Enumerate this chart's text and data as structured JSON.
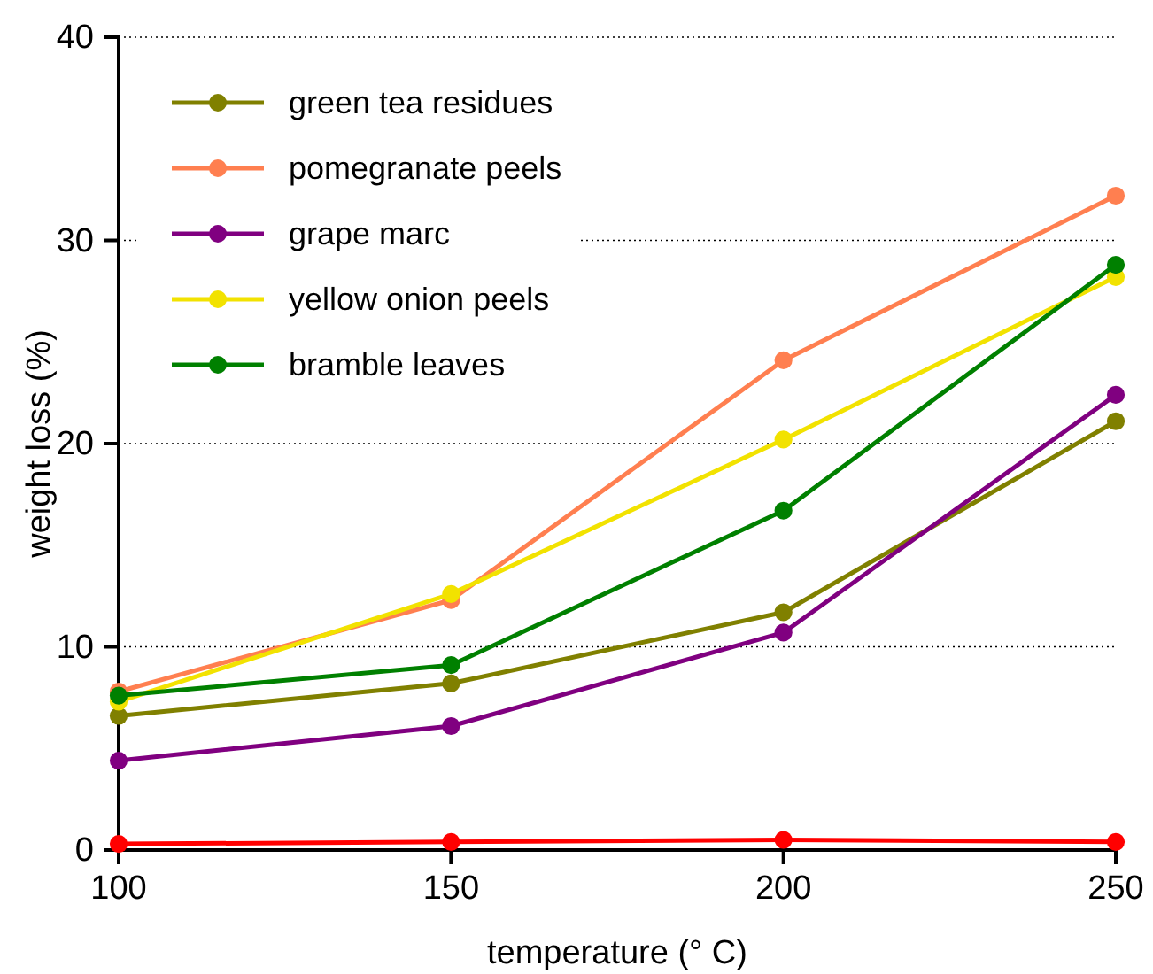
{
  "chart_data": {
    "type": "line",
    "xlabel": "temperature (° C)",
    "ylabel": "weight loss (%)",
    "x": [
      100,
      150,
      200,
      250
    ],
    "xlim": [
      100,
      250
    ],
    "xticks": [
      100,
      150,
      200,
      250
    ],
    "ylim": [
      0,
      40
    ],
    "yticks": [
      0,
      10,
      20,
      30,
      40
    ],
    "grid": "y",
    "legend": "top left",
    "marker": "circle",
    "line_style": "solid",
    "series": [
      {
        "color": "#ff0000",
        "values": [
          0.3,
          0.4,
          0.5,
          0.4
        ]
      },
      {
        "name": "green tea residues",
        "color": "#808000",
        "values": [
          6.6,
          8.2,
          11.7,
          21.1
        ]
      },
      {
        "name": "pomegranate peels",
        "color": "#ff7f50",
        "values": [
          7.8,
          12.3,
          24.1,
          32.2
        ]
      },
      {
        "name": "grape marc",
        "color": "#800080",
        "values": [
          4.4,
          6.1,
          10.7,
          22.4
        ]
      },
      {
        "name": "yellow onion peels",
        "color": "#f2e200",
        "values": [
          7.3,
          12.6,
          20.2,
          28.2
        ]
      },
      {
        "name": "bramble leaves",
        "color": "#008000",
        "values": [
          7.6,
          9.1,
          16.7,
          28.8
        ]
      }
    ]
  }
}
